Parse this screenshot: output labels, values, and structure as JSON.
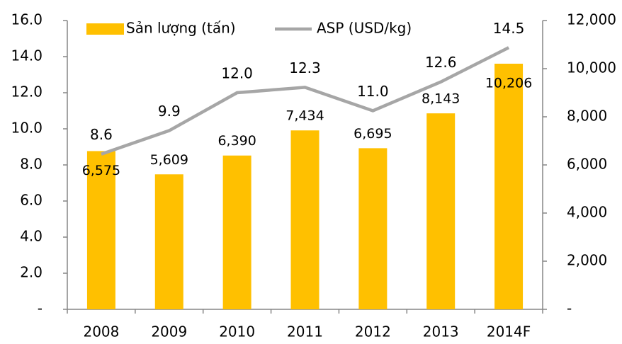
{
  "chart_data": {
    "type": "bar-line",
    "categories": [
      "2008",
      "2009",
      "2010",
      "2011",
      "2012",
      "2013",
      "2014F"
    ],
    "series": [
      {
        "name": "Sản lượng (tấn)",
        "type": "bar",
        "color": "#FFC000",
        "axis": "y2",
        "values": [
          6575,
          5609,
          6390,
          7434,
          6695,
          8143,
          10206
        ],
        "value_labels": [
          "6,575",
          "5,609",
          "6,390",
          "7,434",
          "6,695",
          "8,143",
          "10,206"
        ]
      },
      {
        "name": "ASP (USD/kg)",
        "type": "line",
        "color": "#A6A6A6",
        "axis": "y",
        "values": [
          8.6,
          9.9,
          12.0,
          12.3,
          11.0,
          12.6,
          14.5
        ],
        "value_labels": [
          "8.6",
          "9.9",
          "12.0",
          "12.3",
          "11.0",
          "12.6",
          "14.5"
        ]
      }
    ],
    "ylim": [
      0,
      16
    ],
    "yticks": [
      {
        "value": 0,
        "label": "-"
      },
      {
        "value": 2,
        "label": "2.0"
      },
      {
        "value": 4,
        "label": "4.0"
      },
      {
        "value": 6,
        "label": "6.0"
      },
      {
        "value": 8,
        "label": "8.0"
      },
      {
        "value": 10,
        "label": "10.0"
      },
      {
        "value": 12,
        "label": "12.0"
      },
      {
        "value": 14,
        "label": "14.0"
      },
      {
        "value": 16,
        "label": "16.0"
      }
    ],
    "y2lim": [
      0,
      12000
    ],
    "y2ticks": [
      {
        "value": 0,
        "label": "-"
      },
      {
        "value": 2000,
        "label": "2,000"
      },
      {
        "value": 4000,
        "label": "4,000"
      },
      {
        "value": 6000,
        "label": "6,000"
      },
      {
        "value": 8000,
        "label": "8,000"
      },
      {
        "value": 10000,
        "label": "10,000"
      },
      {
        "value": 12000,
        "label": "12,000"
      }
    ],
    "legend": "top"
  }
}
